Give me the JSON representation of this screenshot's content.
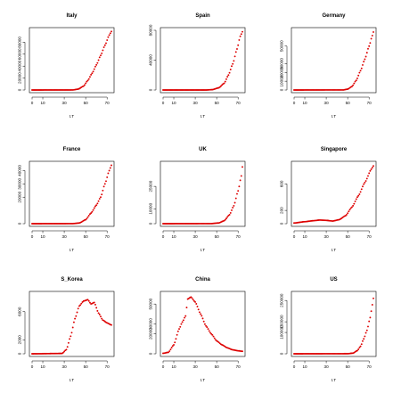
{
  "chart_data": [
    {
      "type": "scatter",
      "title": "Italy",
      "xlabel": "t.T",
      "ylabel": "",
      "xlim": [
        0,
        74
      ],
      "ylim": [
        0,
        100000
      ],
      "xticks": [
        0,
        10,
        30,
        50,
        70
      ],
      "yticks": [
        0,
        20000,
        40000,
        60000,
        80000
      ],
      "color": "#dd0000",
      "key_points": [
        [
          0,
          0
        ],
        [
          38,
          100
        ],
        [
          43,
          1500
        ],
        [
          48,
          6500
        ],
        [
          52,
          16000
        ],
        [
          56,
          28000
        ],
        [
          60,
          42000
        ],
        [
          64,
          58000
        ],
        [
          68,
          75000
        ],
        [
          72,
          92000
        ],
        [
          74,
          98000
        ]
      ]
    },
    {
      "type": "scatter",
      "title": "Spain",
      "xlabel": "t.T",
      "ylabel": "",
      "xlim": [
        0,
        74
      ],
      "ylim": [
        0,
        80000
      ],
      "xticks": [
        0,
        10,
        30,
        50,
        70
      ],
      "yticks": [
        0,
        40000,
        80000
      ],
      "color": "#dd0000",
      "key_points": [
        [
          0,
          0
        ],
        [
          40,
          0
        ],
        [
          46,
          500
        ],
        [
          52,
          3000
        ],
        [
          57,
          9000
        ],
        [
          61,
          20000
        ],
        [
          65,
          35000
        ],
        [
          69,
          55000
        ],
        [
          72,
          72000
        ],
        [
          74,
          78000
        ]
      ]
    },
    {
      "type": "scatter",
      "title": "Germany",
      "xlabel": "t.T",
      "ylabel": "",
      "xlim": [
        0,
        74
      ],
      "ylim": [
        0,
        68000
      ],
      "xticks": [
        0,
        10,
        30,
        50,
        70
      ],
      "yticks": [
        0,
        10000,
        20000,
        30000,
        50000
      ],
      "color": "#dd0000",
      "key_points": [
        [
          0,
          0
        ],
        [
          46,
          100
        ],
        [
          50,
          1000
        ],
        [
          54,
          4000
        ],
        [
          58,
          11000
        ],
        [
          62,
          22000
        ],
        [
          66,
          35000
        ],
        [
          70,
          50000
        ],
        [
          73,
          62000
        ],
        [
          74,
          66000
        ]
      ]
    },
    {
      "type": "scatter",
      "title": "France",
      "xlabel": "t.T",
      "ylabel": "",
      "xlim": [
        0,
        74
      ],
      "ylim": [
        0,
        45000
      ],
      "xticks": [
        0,
        10,
        30,
        50,
        70
      ],
      "yticks": [
        0,
        20000,
        30000,
        40000
      ],
      "color": "#dd0000",
      "key_points": [
        [
          0,
          0
        ],
        [
          38,
          50
        ],
        [
          44,
          500
        ],
        [
          50,
          3000
        ],
        [
          55,
          8000
        ],
        [
          60,
          14000
        ],
        [
          64,
          20000
        ],
        [
          68,
          30000
        ],
        [
          72,
          40000
        ],
        [
          74,
          44000
        ]
      ]
    },
    {
      "type": "scatter",
      "title": "UK",
      "xlabel": "t.T",
      "ylabel": "",
      "xlim": [
        0,
        74
      ],
      "ylim": [
        0,
        40000
      ],
      "xticks": [
        0,
        10,
        30,
        50,
        70
      ],
      "yticks": [
        0,
        10000,
        25000
      ],
      "color": "#dd0000",
      "key_points": [
        [
          0,
          0
        ],
        [
          45,
          50
        ],
        [
          52,
          500
        ],
        [
          57,
          2000
        ],
        [
          62,
          6000
        ],
        [
          66,
          12000
        ],
        [
          70,
          22000
        ],
        [
          73,
          32000
        ],
        [
          74,
          38000
        ]
      ]
    },
    {
      "type": "scatter",
      "title": "Singapore",
      "xlabel": "t.T",
      "ylabel": "",
      "xlim": [
        0,
        74
      ],
      "ylim": [
        0,
        900
      ],
      "xticks": [
        0,
        10,
        30,
        50,
        70
      ],
      "yticks": [
        0,
        200,
        600
      ],
      "color": "#dd0000",
      "key_points": [
        [
          0,
          10
        ],
        [
          10,
          30
        ],
        [
          18,
          45
        ],
        [
          24,
          55
        ],
        [
          30,
          50
        ],
        [
          36,
          40
        ],
        [
          42,
          60
        ],
        [
          48,
          120
        ],
        [
          54,
          250
        ],
        [
          60,
          420
        ],
        [
          66,
          620
        ],
        [
          72,
          820
        ],
        [
          74,
          870
        ]
      ]
    },
    {
      "type": "scatter",
      "title": "S_Korea",
      "xlabel": "t.T",
      "ylabel": "",
      "xlim": [
        0,
        74
      ],
      "ylim": [
        0,
        8500
      ],
      "xticks": [
        0,
        10,
        30,
        50,
        70
      ],
      "yticks": [
        0,
        2000,
        6000
      ],
      "color": "#dd0000",
      "key_points": [
        [
          0,
          0
        ],
        [
          28,
          50
        ],
        [
          32,
          600
        ],
        [
          36,
          2500
        ],
        [
          40,
          5000
        ],
        [
          44,
          6800
        ],
        [
          48,
          7500
        ],
        [
          52,
          7700
        ],
        [
          55,
          7100
        ],
        [
          58,
          7300
        ],
        [
          62,
          5800
        ],
        [
          66,
          4800
        ],
        [
          70,
          4400
        ],
        [
          74,
          4100
        ]
      ]
    },
    {
      "type": "scatter",
      "title": "China",
      "xlabel": "t.T",
      "ylabel": "",
      "xlim": [
        0,
        74
      ],
      "ylim": [
        0,
        60000
      ],
      "xticks": [
        0,
        10,
        30,
        50,
        70
      ],
      "yticks": [
        0,
        20000,
        30000,
        50000
      ],
      "color": "#dd0000",
      "key_points": [
        [
          0,
          500
        ],
        [
          5,
          1500
        ],
        [
          10,
          9000
        ],
        [
          15,
          25000
        ],
        [
          18,
          32000
        ],
        [
          21,
          38000
        ],
        [
          23,
          55000
        ],
        [
          26,
          57000
        ],
        [
          30,
          52000
        ],
        [
          35,
          40000
        ],
        [
          40,
          28000
        ],
        [
          45,
          20000
        ],
        [
          50,
          13000
        ],
        [
          55,
          9000
        ],
        [
          60,
          6000
        ],
        [
          65,
          4000
        ],
        [
          70,
          3000
        ],
        [
          74,
          2500
        ]
      ]
    },
    {
      "type": "scatter",
      "title": "US",
      "xlabel": "t.T",
      "ylabel": "",
      "xlim": [
        0,
        74
      ],
      "ylim": [
        0,
        280000
      ],
      "xticks": [
        0,
        10,
        30,
        50,
        70
      ],
      "yticks": [
        0,
        100000,
        150000,
        250000
      ],
      "color": "#dd0000",
      "key_points": [
        [
          0,
          0
        ],
        [
          50,
          500
        ],
        [
          55,
          3000
        ],
        [
          59,
          15000
        ],
        [
          62,
          35000
        ],
        [
          65,
          70000
        ],
        [
          68,
          110000
        ],
        [
          71,
          170000
        ],
        [
          73,
          230000
        ],
        [
          74,
          260000
        ]
      ]
    }
  ]
}
